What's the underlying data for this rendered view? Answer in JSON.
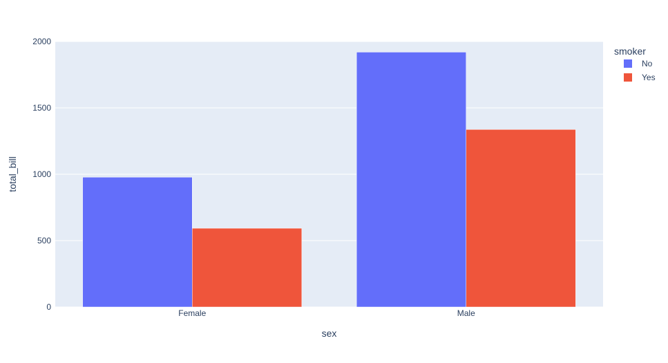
{
  "chart_data": {
    "type": "bar",
    "barmode": "group",
    "xlabel": "sex",
    "ylabel": "total_bill",
    "categories": [
      "Female",
      "Male"
    ],
    "series": [
      {
        "name": "No",
        "values": [
          977.68,
          1919.75
        ],
        "color": "#636efa"
      },
      {
        "name": "Yes",
        "values": [
          593.27,
          1337.07
        ],
        "color": "#ef553b"
      }
    ],
    "ylim": [
      0,
      2000
    ],
    "yticks": [
      0,
      500,
      1000,
      1500,
      2000
    ],
    "grid": true,
    "legend": {
      "title": "smoker",
      "placement": "top-right"
    },
    "plot_bg": "#e5ecf6",
    "text_color": "#2a3f5f"
  }
}
